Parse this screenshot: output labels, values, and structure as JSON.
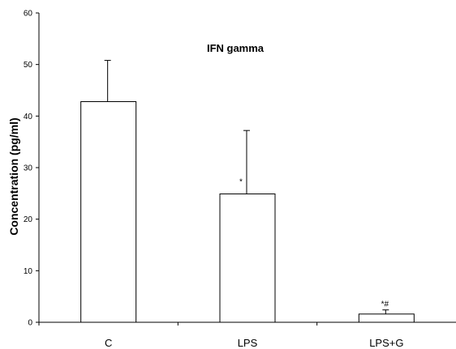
{
  "chart_data": {
    "type": "bar",
    "title": "IFN gamma",
    "xlabel": "",
    "ylabel": "Concentration (pg/ml)",
    "categories": [
      "C",
      "LPS",
      "LPS+G"
    ],
    "values": [
      42.8,
      24.9,
      1.6
    ],
    "error_plus": [
      8.0,
      12.3,
      0.8
    ],
    "annotations": [
      "",
      "*",
      "*#"
    ],
    "ylim": [
      0,
      60
    ],
    "yticks": [
      0,
      10,
      20,
      30,
      40,
      50,
      60
    ],
    "grid": false,
    "legend": "none",
    "bar_fill": "#ffffff",
    "bar_stroke": "#000000"
  }
}
